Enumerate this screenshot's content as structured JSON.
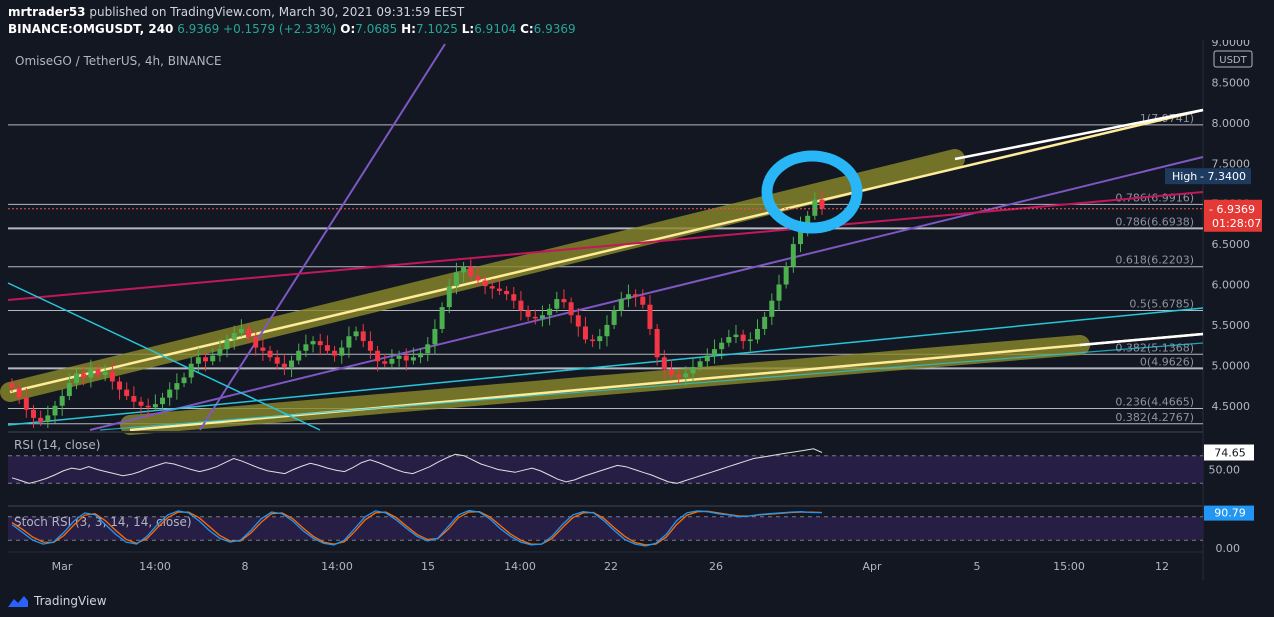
{
  "header": {
    "publisher": "mrtrader53",
    "published_text": "published on TradingView.com, March 30, 2021 09:31:59 EEST",
    "symbol": "BINANCE:OMGUSDT, 240",
    "last": "6.9369",
    "change": "+0.1579 (+2.33%)",
    "o_label": "O:",
    "o_value": "7.0685",
    "h_label": "H:",
    "h_value": "7.1025",
    "l_label": "L:",
    "l_value": "6.9104",
    "c_label": "C:",
    "c_value": "6.9369"
  },
  "footer": {
    "brand": "TradingView"
  },
  "colors": {
    "background": "#131722",
    "bull": "#26a69a",
    "bear": "#ef5350",
    "bull_candle": "#4caf50",
    "bear_candle": "#f23645",
    "trend_yellow": "#ffeb99",
    "trend_glow": "#8a8a2a",
    "purple": "#673ab7",
    "cyan": "#00bcd4",
    "maroon": "#c2185b",
    "circle": "#29b6f6",
    "rsi_band": "#2a1f4a"
  },
  "chart_data": {
    "type": "candlestick",
    "title": "OmiseGO / TetherUS, 4h, BINANCE",
    "y_unit": "USDT",
    "ylim": [
      4.2,
      9.0
    ],
    "y_ticks": [
      "9.0000",
      "8.5000",
      "8.0000",
      "7.5000",
      "7.0000",
      "6.5000",
      "6.0000",
      "5.5000",
      "5.0000",
      "4.5000"
    ],
    "x_ticks": [
      "Mar",
      "14:00",
      "8",
      "14:00",
      "15",
      "14:00",
      "22",
      "26",
      "Apr",
      "5",
      "15:00",
      "12"
    ],
    "price_labels": [
      {
        "text": "High",
        "value": "7.3400"
      },
      {
        "text": "6.9369"
      },
      {
        "text": "01:28:07"
      }
    ],
    "fib_levels": [
      {
        "label": "1(7.9741)",
        "value": 7.9741
      },
      {
        "label": "0.786(6.9916)",
        "value": 6.9916
      },
      {
        "label": "0.786(6.6938)",
        "value": 6.6938
      },
      {
        "label": "0.618(6.2203)",
        "value": 6.2203
      },
      {
        "label": "0.5(5.6785)",
        "value": 5.6785
      },
      {
        "label": "0.382(5.1368)",
        "value": 5.1368
      },
      {
        "label": "0(4.9626)",
        "value": 4.9626
      },
      {
        "label": "0.236(4.4665)",
        "value": 4.4665
      },
      {
        "label": "0.382(4.2767)",
        "value": 4.2767
      }
    ],
    "candles_close": [
      4.72,
      4.6,
      4.45,
      4.35,
      4.3,
      4.38,
      4.5,
      4.62,
      4.78,
      4.9,
      4.85,
      4.95,
      4.88,
      4.92,
      4.8,
      4.7,
      4.62,
      4.55,
      4.5,
      4.48,
      4.52,
      4.6,
      4.7,
      4.78,
      4.85,
      5.02,
      5.1,
      5.05,
      5.12,
      5.2,
      5.32,
      5.4,
      5.45,
      5.35,
      5.22,
      5.18,
      5.1,
      5.02,
      4.98,
      5.06,
      5.18,
      5.26,
      5.3,
      5.25,
      5.18,
      5.12,
      5.22,
      5.36,
      5.42,
      5.3,
      5.18,
      5.05,
      5.02,
      5.08,
      5.12,
      5.06,
      5.1,
      5.15,
      5.26,
      5.45,
      5.72,
      5.98,
      6.15,
      6.22,
      6.1,
      6.05,
      5.98,
      5.95,
      5.92,
      5.88,
      5.8,
      5.68,
      5.6,
      5.58,
      5.62,
      5.7,
      5.82,
      5.78,
      5.62,
      5.48,
      5.32,
      5.3,
      5.36,
      5.5,
      5.68,
      5.82,
      5.88,
      5.85,
      5.75,
      5.45,
      5.1,
      4.95,
      4.88,
      4.85,
      4.9,
      4.98,
      5.05,
      5.12,
      5.2,
      5.28,
      5.35,
      5.38,
      5.3,
      5.32,
      5.45,
      5.6,
      5.8,
      6.0,
      6.22,
      6.5,
      6.72,
      6.85,
      7.05,
      6.9369
    ],
    "rsi": {
      "label": "RSI (14, close)",
      "current": "74.65",
      "ticks": [
        "50.00"
      ],
      "values": [
        38,
        34,
        30,
        33,
        37,
        42,
        48,
        52,
        50,
        54,
        50,
        47,
        44,
        41,
        43,
        47,
        52,
        56,
        60,
        58,
        54,
        50,
        47,
        50,
        54,
        60,
        66,
        62,
        57,
        52,
        48,
        46,
        44,
        50,
        55,
        59,
        56,
        52,
        49,
        47,
        53,
        60,
        64,
        60,
        55,
        50,
        46,
        44,
        49,
        54,
        61,
        67,
        72,
        70,
        64,
        58,
        54,
        50,
        48,
        46,
        49,
        52,
        48,
        42,
        36,
        32,
        35,
        40,
        44,
        48,
        52,
        56,
        54,
        50,
        46,
        42,
        37,
        32,
        30,
        34,
        38,
        42,
        46,
        50,
        54,
        58,
        62,
        66,
        68,
        70,
        72,
        74,
        76,
        78,
        80,
        74.65
      ]
    },
    "stoch_rsi": {
      "label": "Stoch RSI (3, 3, 14, 14, close)",
      "current": "90.79",
      "ticks": [
        "0.00"
      ],
      "k": [
        60,
        40,
        20,
        10,
        15,
        40,
        70,
        90,
        85,
        60,
        35,
        15,
        10,
        30,
        60,
        85,
        95,
        90,
        70,
        45,
        25,
        15,
        20,
        45,
        75,
        92,
        88,
        70,
        45,
        25,
        12,
        8,
        20,
        50,
        80,
        95,
        90,
        72,
        50,
        30,
        18,
        25,
        55,
        85,
        96,
        92,
        75,
        50,
        30,
        15,
        8,
        10,
        30,
        60,
        85,
        93,
        90,
        70,
        45,
        22,
        10,
        5,
        12,
        35,
        70,
        90,
        95,
        93,
        88,
        85,
        80,
        82,
        86,
        88,
        90,
        92,
        93,
        91,
        90.79
      ],
      "d": [
        65,
        48,
        28,
        15,
        14,
        32,
        60,
        84,
        88,
        70,
        45,
        22,
        12,
        24,
        52,
        78,
        92,
        92,
        78,
        55,
        32,
        18,
        18,
        38,
        66,
        88,
        90,
        76,
        52,
        30,
        15,
        10,
        16,
        42,
        72,
        90,
        92,
        78,
        56,
        35,
        22,
        24,
        48,
        78,
        92,
        93,
        80,
        58,
        36,
        20,
        10,
        10,
        24,
        52,
        78,
        90,
        91,
        76,
        52,
        30,
        14,
        8,
        10,
        28,
        60,
        84,
        93,
        94,
        90,
        86,
        82,
        82,
        85,
        87,
        89,
        91,
        92,
        92,
        91
      ]
    }
  }
}
